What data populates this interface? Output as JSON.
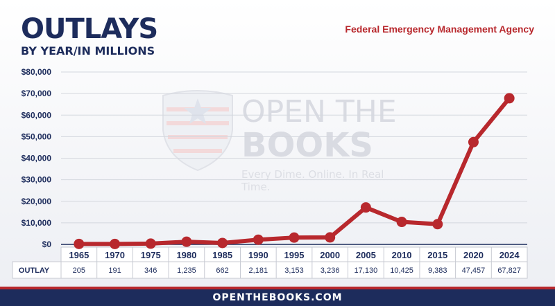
{
  "header": {
    "title": "OUTLAYS",
    "subtitle": "BY YEAR/IN MILLIONS",
    "agency": "Federal Emergency Management Agency"
  },
  "watermark": {
    "line1": "OPEN THE",
    "line2": "BOOKS",
    "tagline": "Every Dime. Online. In Real Time."
  },
  "footer": {
    "text": "OPENTHEBOOKS.COM"
  },
  "colors": {
    "navy": "#1d2c5c",
    "red": "#b8282d"
  },
  "chart_data": {
    "type": "line",
    "title": "OUTLAYS",
    "subtitle": "BY YEAR/IN MILLIONS",
    "categories": [
      "1965",
      "1970",
      "1975",
      "1980",
      "1985",
      "1990",
      "1995",
      "2000",
      "2005",
      "2010",
      "2015",
      "2020",
      "2024"
    ],
    "series": [
      {
        "values": [
          205,
          191,
          346,
          1235,
          662,
          2181,
          3153,
          3236,
          17130,
          10425,
          9383,
          47457,
          67827
        ]
      }
    ],
    "table": {
      "row_label": "OUTLAY",
      "values": [
        "205",
        "191",
        "346",
        "1,235",
        "662",
        "2,181",
        "3,153",
        "3,236",
        "17,130",
        "10,425",
        "9,383",
        "47,457",
        "67,827"
      ]
    },
    "y_ticks": [
      "$0",
      "$10,000",
      "$20,000",
      "$30,000",
      "$40,000",
      "$50,000",
      "$60,000",
      "$70,000",
      "$80,000"
    ],
    "ylim": [
      0,
      80000
    ],
    "grid": true,
    "legend": "none",
    "line_color": "#b8282d"
  }
}
